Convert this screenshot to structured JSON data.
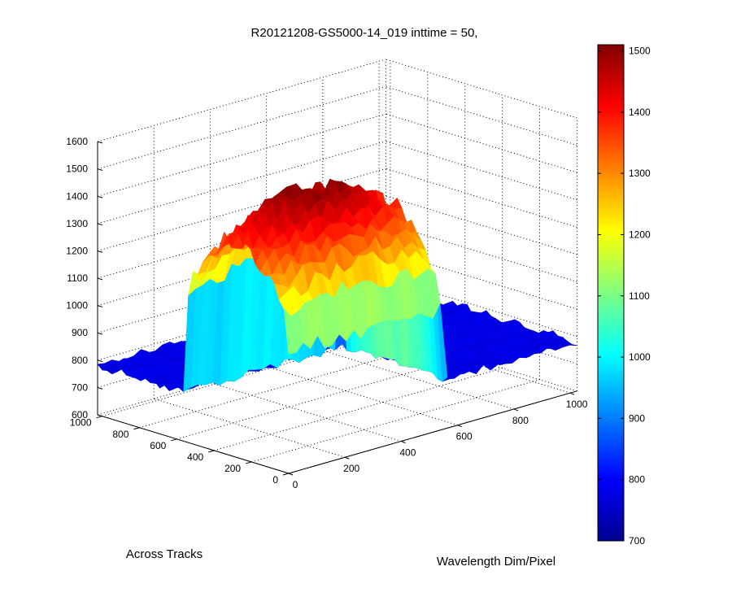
{
  "chart_data": {
    "type": "surface",
    "title": "R20121208-GS5000-14_019 inttime = 50,",
    "xlabel": "Wavelength Dim/Pixel",
    "ylabel": "Across Tracks",
    "zlabel": "",
    "xlim": [
      0,
      1024
    ],
    "ylim": [
      0,
      1024
    ],
    "zlim": [
      600,
      1600
    ],
    "x_ticks": [
      0,
      200,
      400,
      600,
      800,
      1000
    ],
    "y_ticks": [
      0,
      200,
      400,
      600,
      800,
      1000
    ],
    "z_ticks": [
      600,
      700,
      800,
      900,
      1000,
      1100,
      1200,
      1300,
      1400,
      1500,
      1600
    ],
    "grid": true,
    "colormap": "jet",
    "color_limits": [
      700,
      1510
    ],
    "colorbar_ticks": [
      700,
      800,
      900,
      1000,
      1100,
      1200,
      1300,
      1400,
      1500
    ],
    "background_level": 780,
    "peak": {
      "x_range": [
        0,
        560
      ],
      "y_range": [
        0,
        560
      ],
      "max_value": 1500,
      "edge_value": 1050
    }
  }
}
